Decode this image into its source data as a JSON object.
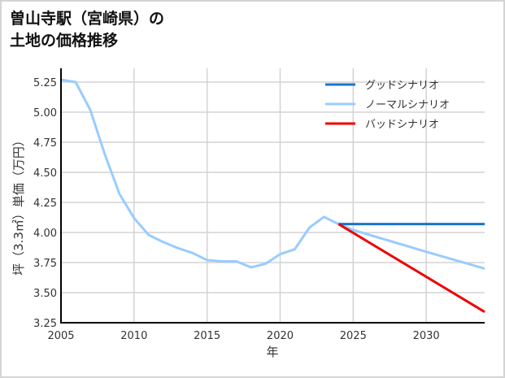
{
  "title": {
    "line1": "曽山寺駅（宮崎県）の",
    "line2": "土地の価格推移"
  },
  "colors": {
    "good": "#1874cd",
    "normal": "#99ccff",
    "bad": "#ee0000",
    "grid": "#d3d3d3",
    "axis": "#000000"
  },
  "chart_data": {
    "type": "line",
    "title": "曽山寺駅（宮崎県）の土地の価格推移",
    "xlabel": "年",
    "ylabel": "坪（3.3㎡）単価（万円）",
    "xlim": [
      2005,
      2034
    ],
    "ylim": [
      3.25,
      5.3
    ],
    "grid": true,
    "legend_position": "upper right",
    "x_ticks": [
      2005,
      2010,
      2015,
      2020,
      2025,
      2030
    ],
    "x_tick_labels": [
      "2005",
      "2010",
      "2015",
      "2020",
      "2025",
      "2030"
    ],
    "y_ticks": [
      3.25,
      3.5,
      3.75,
      4.0,
      4.25,
      4.5,
      4.75,
      5.0,
      5.25
    ],
    "y_tick_labels": [
      "3.25",
      "3.50",
      "3.75",
      "4.00",
      "4.25",
      "4.50",
      "4.75",
      "5.00",
      "5.25"
    ],
    "series": [
      {
        "name": "グッドシナリオ",
        "key": "good",
        "x": [
          2024,
          2034
        ],
        "values": [
          4.07,
          4.07
        ]
      },
      {
        "name": "ノーマルシナリオ",
        "key": "normal",
        "x": [
          2005,
          2006,
          2007,
          2008,
          2009,
          2010,
          2011,
          2012,
          2013,
          2014,
          2015,
          2016,
          2017,
          2018,
          2019,
          2020,
          2021,
          2022,
          2023,
          2024,
          2025,
          2030,
          2034
        ],
        "values": [
          5.27,
          5.25,
          5.02,
          4.65,
          4.32,
          4.12,
          3.98,
          3.92,
          3.87,
          3.83,
          3.77,
          3.76,
          3.76,
          3.71,
          3.74,
          3.82,
          3.86,
          4.04,
          4.13,
          4.07,
          4.02,
          3.84,
          3.7
        ]
      },
      {
        "name": "バッドシナリオ",
        "key": "bad",
        "x": [
          2024,
          2034
        ],
        "values": [
          4.07,
          3.34
        ]
      }
    ]
  }
}
